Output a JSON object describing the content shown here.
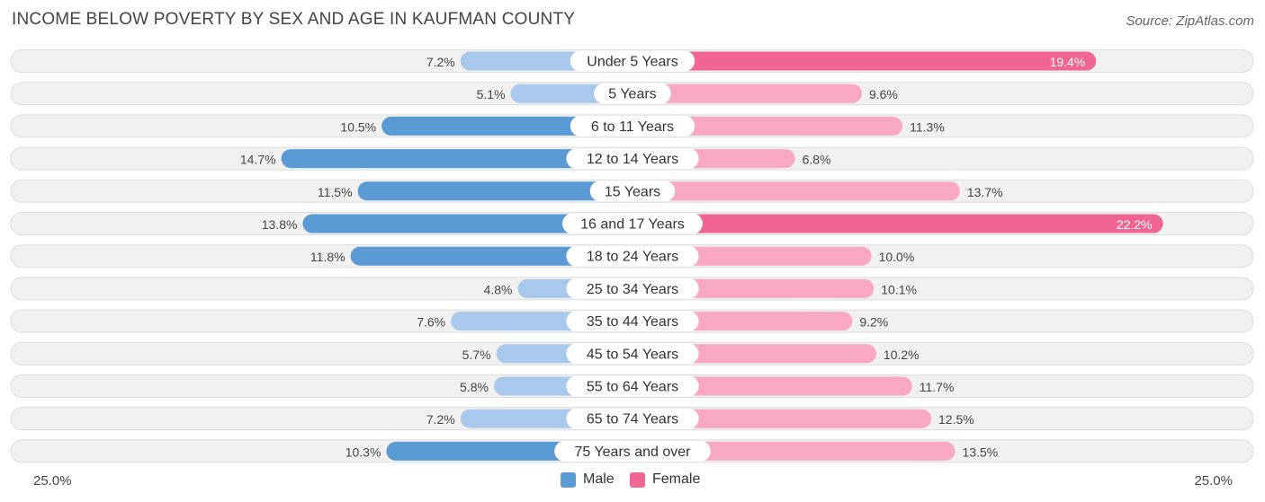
{
  "title": "INCOME BELOW POVERTY BY SEX AND AGE IN KAUFMAN COUNTY",
  "source": "Source: ZipAtlas.com",
  "colors": {
    "male_strong": "#5b9bd5",
    "male_light": "#a9c9ec",
    "female_strong": "#f06592",
    "female_light": "#f8a8c0",
    "row_bg": "#f1f1f1",
    "row_border": "#dcdcdc"
  },
  "legend": {
    "male": "Male",
    "female": "Female"
  },
  "axis": {
    "left_label": "25.0%",
    "right_label": "25.0%"
  },
  "chart_data": {
    "type": "bar",
    "orientation": "horizontal-diverging",
    "categories": [
      "Under 5 Years",
      "5 Years",
      "6 to 11 Years",
      "12 to 14 Years",
      "15 Years",
      "16 and 17 Years",
      "18 to 24 Years",
      "25 to 34 Years",
      "35 to 44 Years",
      "45 to 54 Years",
      "55 to 64 Years",
      "65 to 74 Years",
      "75 Years and over"
    ],
    "series": [
      {
        "name": "Male",
        "values": [
          7.2,
          5.1,
          10.5,
          14.7,
          11.5,
          13.8,
          11.8,
          4.8,
          7.6,
          5.7,
          5.8,
          7.2,
          10.3
        ],
        "labels": [
          "7.2%",
          "5.1%",
          "10.5%",
          "14.7%",
          "11.5%",
          "13.8%",
          "11.8%",
          "4.8%",
          "7.6%",
          "5.7%",
          "5.8%",
          "7.2%",
          "10.3%"
        ]
      },
      {
        "name": "Female",
        "values": [
          19.4,
          9.6,
          11.3,
          6.8,
          13.7,
          22.2,
          10.0,
          10.1,
          9.2,
          10.2,
          11.7,
          12.5,
          13.5
        ],
        "labels": [
          "19.4%",
          "9.6%",
          "11.3%",
          "6.8%",
          "13.7%",
          "22.2%",
          "10.0%",
          "10.1%",
          "9.2%",
          "10.2%",
          "11.7%",
          "12.5%",
          "13.5%"
        ]
      }
    ],
    "xlim": [
      -25,
      25
    ],
    "grid": false,
    "legend_position": "bottom-center"
  }
}
